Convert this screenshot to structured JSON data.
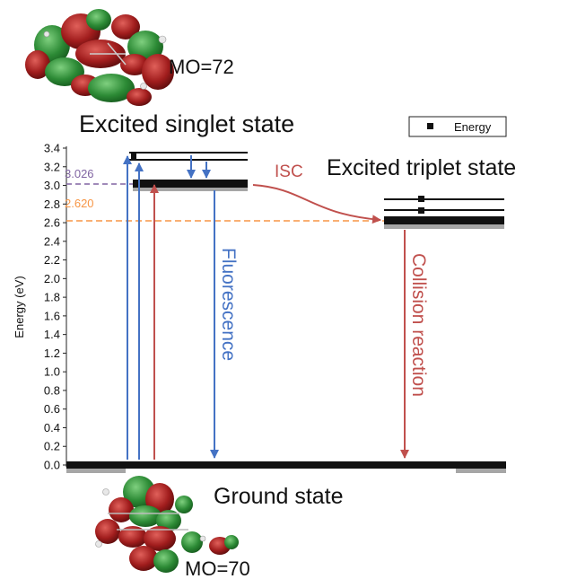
{
  "title_singlet": "Excited singlet state",
  "title_triplet": "Excited triplet state",
  "title_ground": "Ground state",
  "mo_top": "MO=72",
  "mo_bottom": "MO=70",
  "legend_label": "Energy",
  "process_isc": "ISC",
  "process_fluorescence": "Fluorescence",
  "process_collision": "Collision reaction",
  "level_singlet": "3.026",
  "level_triplet": "2.620",
  "colors": {
    "blue": "#4472c4",
    "red": "#c0504d",
    "purple": "#8064a2",
    "orange": "#f79646"
  },
  "chart_data": {
    "type": "scatter",
    "ylabel": "Energy (eV)",
    "ylim": [
      0.0,
      3.4
    ],
    "y_ticks": [
      "0.0",
      "0.2",
      "0.4",
      "0.6",
      "0.8",
      "1.0",
      "1.2",
      "1.4",
      "1.6",
      "1.8",
      "2.0",
      "2.2",
      "2.4",
      "2.6",
      "2.8",
      "3.0",
      "3.2",
      "3.4"
    ],
    "series": [
      {
        "name": "Energy",
        "levels": [
          0.0,
          3.026,
          3.34,
          2.62,
          2.75,
          2.87
        ]
      }
    ]
  }
}
